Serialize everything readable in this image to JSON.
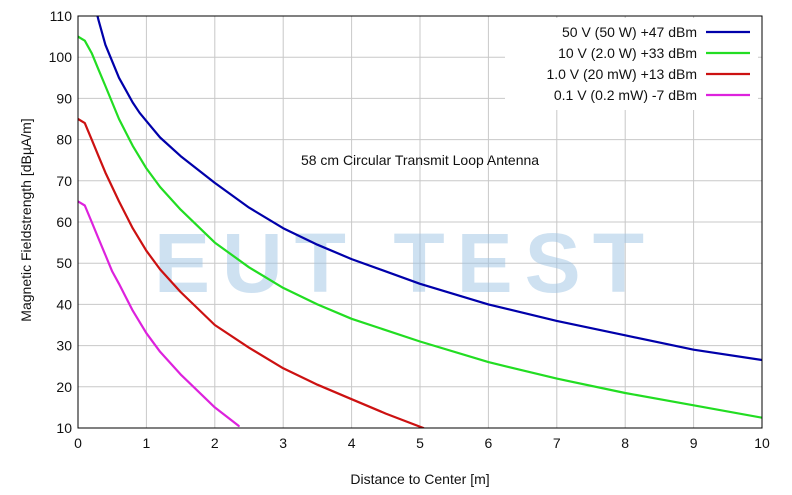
{
  "chart_data": {
    "type": "line",
    "title": "",
    "annotation": "58 cm Circular Transmit Loop Antenna",
    "watermark": "EUT TEST",
    "xlabel": "Distance to Center [m]",
    "ylabel": "Magnetic Fieldstrength [dBµA/m]",
    "xlim": [
      0,
      10
    ],
    "ylim": [
      10,
      110
    ],
    "xticks": [
      0,
      1,
      2,
      3,
      4,
      5,
      6,
      7,
      8,
      9,
      10
    ],
    "yticks": [
      10,
      20,
      30,
      40,
      50,
      60,
      70,
      80,
      90,
      100,
      110
    ],
    "grid": true,
    "legend_position": "top-right",
    "series": [
      {
        "name": "50 V  (50 W)  +47 dBm",
        "color": "#0000aa",
        "x": [
          0.27,
          0.3,
          0.4,
          0.5,
          0.6,
          0.7,
          0.8,
          0.9,
          1.0,
          1.2,
          1.5,
          2.0,
          2.5,
          3.0,
          3.5,
          4.0,
          5.0,
          6.0,
          7.0,
          8.0,
          9.0,
          10.0
        ],
        "y": [
          111,
          109,
          103,
          99,
          95,
          92,
          89,
          86.5,
          84.5,
          80.5,
          76,
          69.5,
          63.5,
          58.5,
          54.5,
          51,
          45,
          40,
          36,
          32.5,
          29,
          26.5
        ]
      },
      {
        "name": "10 V  (2.0 W) +33 dBm",
        "color": "#22dd22",
        "x": [
          0.0,
          0.1,
          0.2,
          0.3,
          0.4,
          0.5,
          0.6,
          0.8,
          1.0,
          1.2,
          1.5,
          2.0,
          2.5,
          3.0,
          3.5,
          4.0,
          5.0,
          6.0,
          7.0,
          8.0,
          9.0,
          10.0
        ],
        "y": [
          105,
          104,
          101,
          97,
          93,
          89,
          85,
          78.5,
          73,
          68.5,
          63,
          55,
          49,
          44,
          40,
          36.5,
          31,
          26,
          22,
          18.5,
          15.5,
          12.5
        ]
      },
      {
        "name": "1.0 V (20 mW) +13 dBm",
        "color": "#cc1111",
        "x": [
          0.0,
          0.1,
          0.2,
          0.3,
          0.4,
          0.6,
          0.8,
          1.0,
          1.2,
          1.5,
          2.0,
          2.5,
          3.0,
          3.5,
          4.0,
          4.5,
          5.05
        ],
        "y": [
          85,
          84,
          80,
          76,
          72,
          65,
          58.5,
          53,
          48.5,
          43,
          35,
          29.5,
          24.5,
          20.5,
          17,
          13.5,
          10
        ]
      },
      {
        "name": "0.1 V (0.2 mW) -7 dBm",
        "color": "#dd22dd",
        "x": [
          0.0,
          0.1,
          0.2,
          0.3,
          0.4,
          0.5,
          0.6,
          0.8,
          1.0,
          1.2,
          1.5,
          2.0,
          2.35
        ],
        "y": [
          65,
          64,
          60,
          56,
          52,
          48,
          45,
          38.5,
          33,
          28.5,
          23,
          15,
          10.5
        ]
      }
    ]
  }
}
